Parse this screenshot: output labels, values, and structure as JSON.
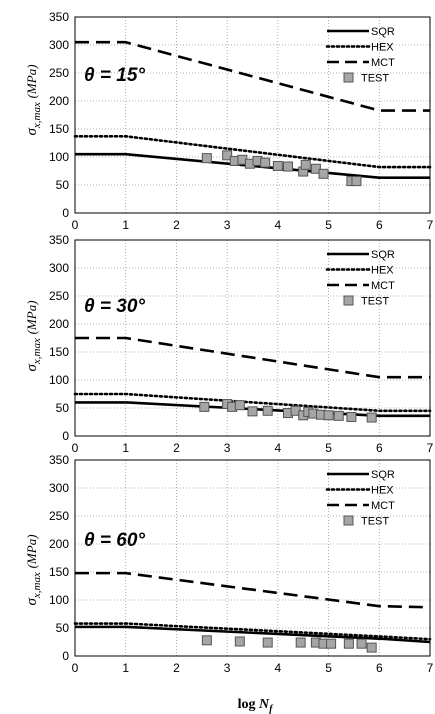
{
  "figure": {
    "xlabel_prefix": "log",
    "xlabel_var": "N",
    "xlabel_sub": "f"
  },
  "colors": {
    "sqr": "#000000",
    "hex": "#000000",
    "mct": "#000000",
    "test_fill": "#a6a6a6",
    "test_stroke": "#555555",
    "grid": "#9a9a9a"
  },
  "chart_data": [
    {
      "type": "line",
      "title": "",
      "annotation": "θ = 15°",
      "xlabel": "",
      "ylabel": "σx,max (MPa)",
      "ylabel_main": "σ",
      "ylabel_sub": "x,max",
      "ylabel_unit": "(MPa)",
      "xlim": [
        0,
        7
      ],
      "ylim": [
        0,
        350
      ],
      "x_ticks": [
        "0",
        "1",
        "2",
        "3",
        "4",
        "5",
        "6",
        "7"
      ],
      "y_ticks": [
        "0",
        "50",
        "100",
        "150",
        "200",
        "250",
        "300",
        "350"
      ],
      "grid": true,
      "legend_position": "top-right",
      "series": [
        {
          "name": "SQR",
          "style": "solid",
          "x": [
            0,
            1,
            6,
            7
          ],
          "y": [
            105,
            105,
            63,
            63
          ]
        },
        {
          "name": "HEX",
          "style": "dotted",
          "x": [
            0,
            1,
            6,
            7
          ],
          "y": [
            137,
            137,
            82,
            82
          ]
        },
        {
          "name": "MCT",
          "style": "dashed",
          "x": [
            0,
            1,
            6,
            7
          ],
          "y": [
            305,
            305,
            183,
            183
          ]
        },
        {
          "name": "TEST",
          "style": "marker",
          "x": [
            2.6,
            3.0,
            3.15,
            3.3,
            3.45,
            3.6,
            3.75,
            4.0,
            4.2,
            4.5,
            4.55,
            4.75,
            4.9,
            5.45,
            5.55
          ],
          "y": [
            98,
            103,
            93,
            95,
            88,
            93,
            90,
            84,
            83,
            74,
            86,
            79,
            70,
            57,
            57
          ]
        }
      ]
    },
    {
      "type": "line",
      "title": "",
      "annotation": "θ = 30°",
      "xlabel": "",
      "ylabel": "σx,max (MPa)",
      "ylabel_main": "σ",
      "ylabel_sub": "x,max",
      "ylabel_unit": "(MPa)",
      "xlim": [
        0,
        7
      ],
      "ylim": [
        0,
        350
      ],
      "x_ticks": [
        "0",
        "1",
        "2",
        "3",
        "4",
        "5",
        "6",
        "7"
      ],
      "y_ticks": [
        "0",
        "50",
        "100",
        "150",
        "200",
        "250",
        "300",
        "350"
      ],
      "grid": true,
      "legend_position": "top-right",
      "series": [
        {
          "name": "SQR",
          "style": "solid",
          "x": [
            0,
            1,
            6,
            7
          ],
          "y": [
            60,
            60,
            36,
            36
          ]
        },
        {
          "name": "HEX",
          "style": "dotted",
          "x": [
            0,
            1,
            6,
            7
          ],
          "y": [
            75,
            75,
            45,
            45
          ]
        },
        {
          "name": "MCT",
          "style": "dashed",
          "x": [
            0,
            1,
            6,
            7
          ],
          "y": [
            175,
            175,
            105,
            105
          ]
        },
        {
          "name": "TEST",
          "style": "marker",
          "x": [
            2.55,
            3.0,
            3.1,
            3.25,
            3.5,
            3.8,
            4.2,
            4.35,
            4.5,
            4.6,
            4.7,
            4.85,
            5.0,
            5.2,
            5.45,
            5.85
          ],
          "y": [
            52,
            57,
            52,
            55,
            44,
            45,
            41,
            45,
            37,
            43,
            40,
            38,
            37,
            36,
            34,
            33
          ]
        }
      ]
    },
    {
      "type": "line",
      "title": "",
      "annotation": "θ = 60°",
      "xlabel": "log Nf",
      "ylabel": "σx,max (MPa)",
      "ylabel_main": "σ",
      "ylabel_sub": "x,max",
      "ylabel_unit": "(MPa)",
      "xlim": [
        0,
        7
      ],
      "ylim": [
        0,
        350
      ],
      "x_ticks": [
        "0",
        "1",
        "2",
        "3",
        "4",
        "5",
        "6",
        "7"
      ],
      "y_ticks": [
        "0",
        "50",
        "100",
        "150",
        "200",
        "250",
        "300",
        "350"
      ],
      "grid": true,
      "legend_position": "top-right",
      "series": [
        {
          "name": "SQR",
          "style": "solid",
          "x": [
            0,
            1,
            6,
            7
          ],
          "y": [
            52,
            52,
            31,
            25
          ]
        },
        {
          "name": "HEX",
          "style": "dotted",
          "x": [
            0,
            1,
            6,
            7
          ],
          "y": [
            58,
            58,
            35,
            30
          ]
        },
        {
          "name": "MCT",
          "style": "dashed",
          "x": [
            0,
            1,
            6,
            7
          ],
          "y": [
            148,
            148,
            89,
            87
          ]
        },
        {
          "name": "TEST",
          "style": "marker",
          "x": [
            2.6,
            3.25,
            3.8,
            4.45,
            4.75,
            4.9,
            5.05,
            5.4,
            5.65,
            5.85
          ],
          "y": [
            28,
            26,
            24,
            24,
            24,
            22,
            22,
            22,
            22,
            15
          ]
        }
      ]
    }
  ]
}
